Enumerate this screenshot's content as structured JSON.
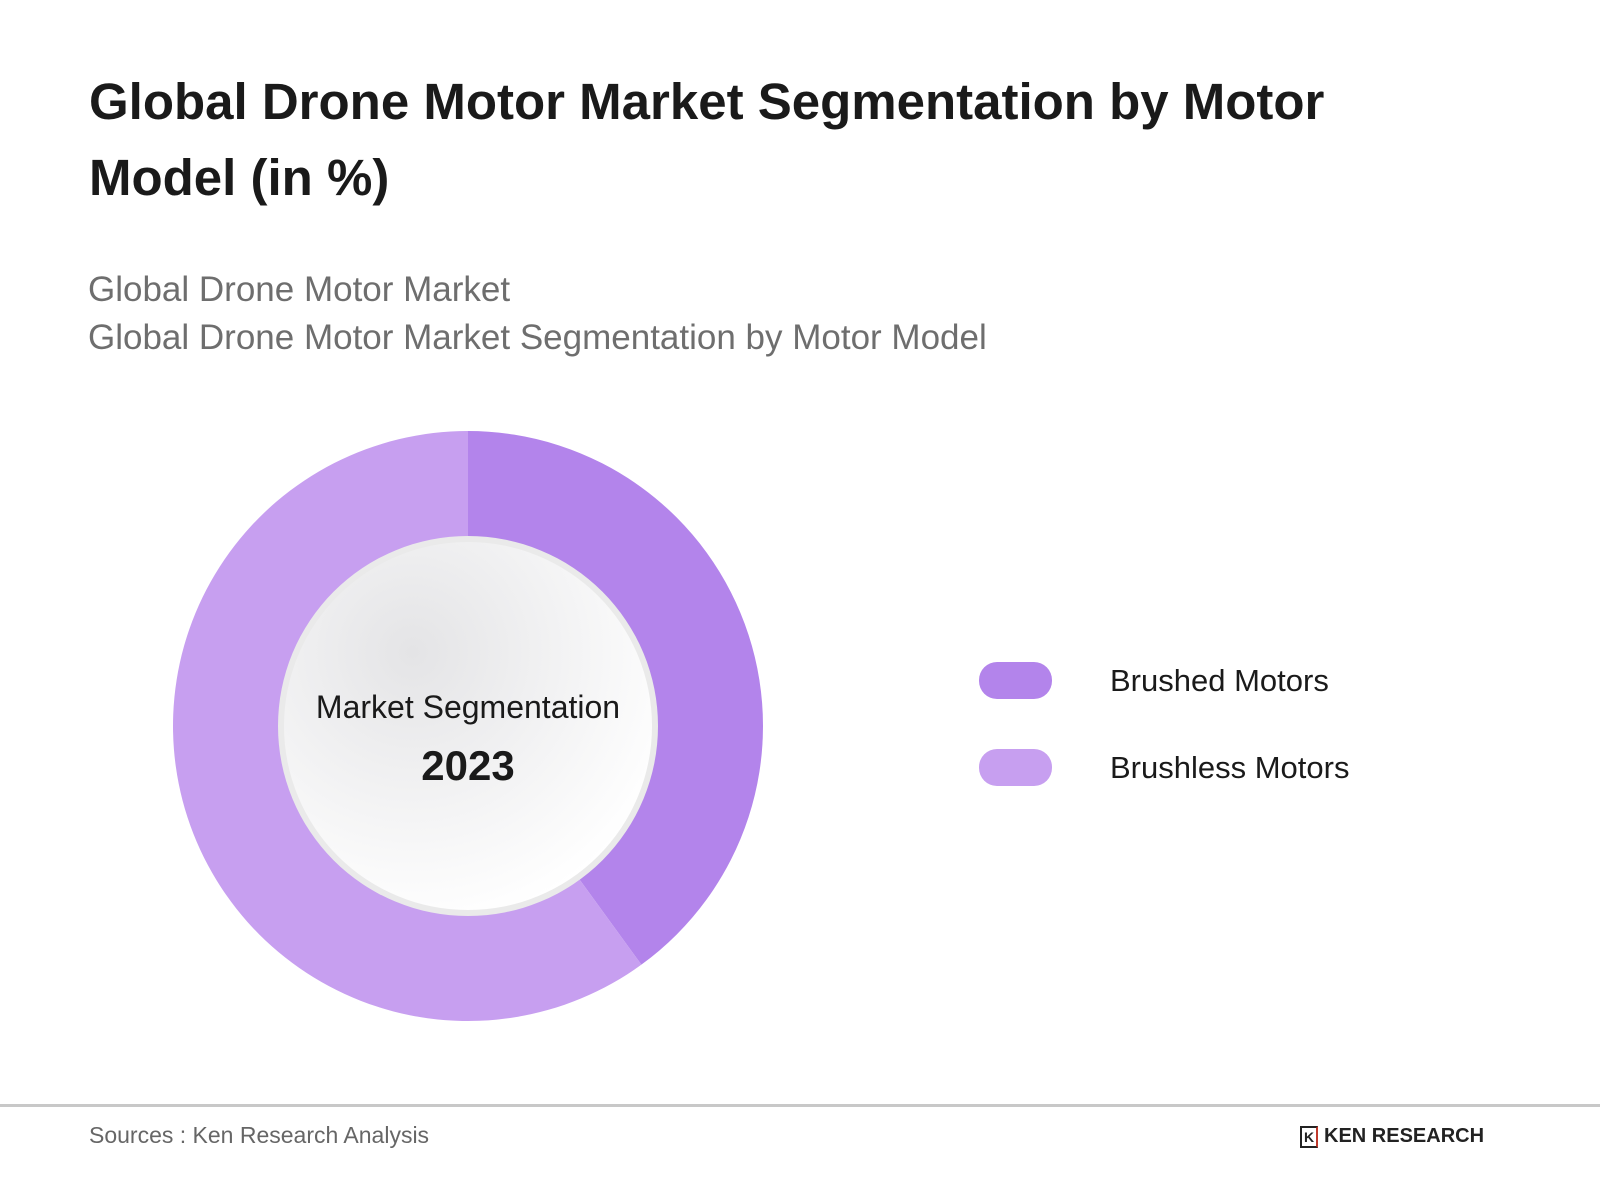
{
  "title": "Global Drone Motor Market Segmentation by Motor Model (in %)",
  "subtitle1": "Global Drone Motor Market",
  "subtitle2": "Global Drone Motor Market Segmentation by Motor Model",
  "chart_data": {
    "type": "pie",
    "donut": true,
    "center_label": "Market Segmentation",
    "center_value": "2023",
    "categories": [
      "Brushed Motors",
      "Brushless Motors"
    ],
    "values": [
      40,
      60
    ],
    "colors": [
      "#b384eb",
      "#c79ff0"
    ],
    "legend_position": "right"
  },
  "footer": {
    "source": "Sources : Ken Research Analysis",
    "logo_text": "KEN RESEARCH"
  }
}
